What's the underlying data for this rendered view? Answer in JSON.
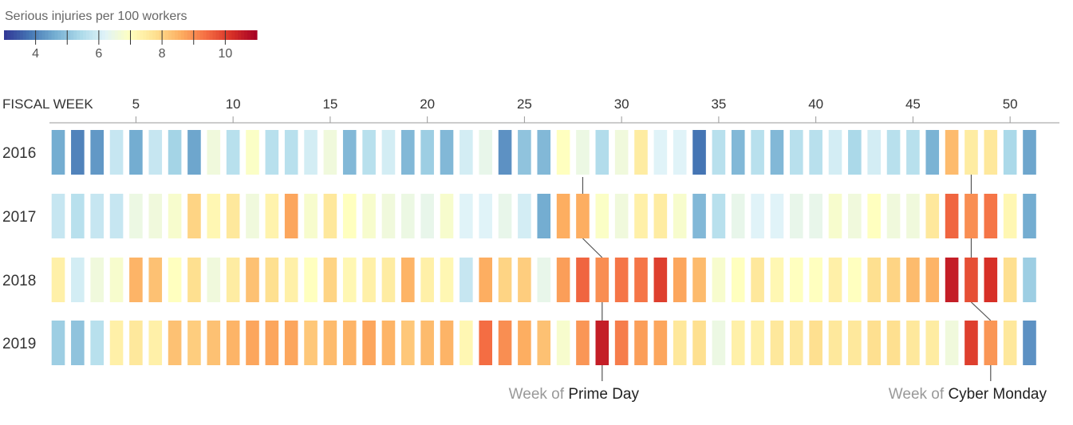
{
  "chart_data": {
    "type": "heatmap",
    "legend": {
      "title": "Serious injuries per 100 workers",
      "tick_labels": [
        "4",
        "6",
        "8",
        "10"
      ],
      "tick_values": [
        4,
        6,
        8,
        10
      ],
      "range": [
        3,
        11
      ]
    },
    "x_axis": {
      "label": "FISCAL WEEK",
      "tick_labels": [
        "5",
        "10",
        "15",
        "20",
        "25",
        "30",
        "35",
        "40",
        "45",
        "50"
      ],
      "tick_values": [
        5,
        10,
        15,
        20,
        25,
        30,
        35,
        40,
        45,
        50
      ],
      "range": [
        1,
        52
      ]
    },
    "series": [
      {
        "name": "2016",
        "values": [
          4.6,
          4.0,
          4.3,
          5.8,
          4.6,
          5.8,
          5.3,
          4.5,
          6.6,
          5.6,
          6.9,
          5.6,
          5.6,
          6.0,
          6.6,
          4.8,
          5.6,
          6.0,
          4.8,
          5.2,
          4.8,
          6.0,
          6.4,
          4.2,
          5.0,
          4.8,
          7.0,
          6.5,
          5.5,
          6.6,
          7.5,
          6.2,
          6.2,
          3.8,
          5.6,
          4.8,
          5.6,
          4.8,
          5.6,
          5.6,
          6.0,
          5.4,
          6.0,
          5.6,
          5.6,
          4.7,
          8.4,
          7.5,
          7.6,
          5.4,
          4.5
        ]
      },
      {
        "name": "2017",
        "values": [
          5.8,
          5.6,
          5.8,
          5.8,
          6.5,
          6.6,
          6.8,
          8.0,
          7.2,
          7.6,
          6.6,
          7.3,
          8.7,
          6.8,
          7.6,
          7.0,
          6.8,
          6.6,
          6.5,
          6.4,
          6.8,
          6.2,
          6.2,
          6.4,
          6.0,
          4.6,
          8.6,
          8.6,
          6.9,
          6.6,
          7.4,
          7.5,
          6.8,
          4.8,
          5.6,
          6.4,
          6.2,
          6.2,
          6.4,
          6.4,
          6.8,
          6.6,
          7.0,
          6.6,
          6.6,
          7.6,
          9.5,
          9.0,
          9.3,
          7.2,
          4.6
        ]
      },
      {
        "name": "2018",
        "values": [
          7.4,
          6.0,
          6.6,
          6.8,
          8.5,
          8.3,
          7.0,
          7.8,
          6.6,
          7.5,
          8.3,
          7.8,
          7.4,
          7.0,
          8.0,
          7.2,
          7.4,
          7.5,
          8.5,
          7.4,
          7.2,
          5.8,
          8.6,
          8.0,
          8.1,
          6.4,
          8.8,
          9.5,
          9.0,
          9.3,
          9.3,
          10.0,
          8.7,
          8.4,
          6.8,
          7.0,
          7.6,
          7.2,
          7.0,
          7.0,
          7.4,
          7.0,
          7.8,
          8.0,
          8.4,
          8.5,
          10.5,
          9.8,
          10.2,
          7.8,
          5.2
        ]
      },
      {
        "name": "2019",
        "values": [
          5.2,
          5.0,
          5.6,
          7.4,
          7.6,
          7.4,
          8.3,
          8.1,
          8.3,
          8.5,
          8.7,
          8.7,
          8.7,
          8.2,
          8.4,
          8.5,
          8.7,
          8.5,
          8.2,
          8.4,
          8.5,
          7.2,
          9.4,
          9.0,
          8.6,
          8.3,
          6.8,
          8.9,
          10.5,
          9.2,
          8.8,
          8.7,
          7.6,
          7.8,
          6.5,
          7.4,
          7.4,
          7.6,
          7.6,
          7.8,
          7.6,
          7.6,
          7.8,
          7.8,
          7.6,
          7.5,
          6.6,
          10.0,
          8.9,
          7.6,
          4.2
        ]
      }
    ],
    "annotations": [
      {
        "prefix": "Week of ",
        "label": "Prime Day",
        "week": 29,
        "rows": [
          "2017",
          "2018",
          "2019"
        ]
      },
      {
        "prefix": "Week of ",
        "label": "Cyber Monday",
        "week": 49,
        "rows": [
          "2016",
          "2017",
          "2018",
          "2019"
        ]
      }
    ],
    "colors": [
      "#313695",
      "#4575b4",
      "#74add1",
      "#abd9e9",
      "#e0f3f8",
      "#ffffbf",
      "#fee090",
      "#fdae61",
      "#f46d43",
      "#d73027",
      "#a50026"
    ]
  }
}
